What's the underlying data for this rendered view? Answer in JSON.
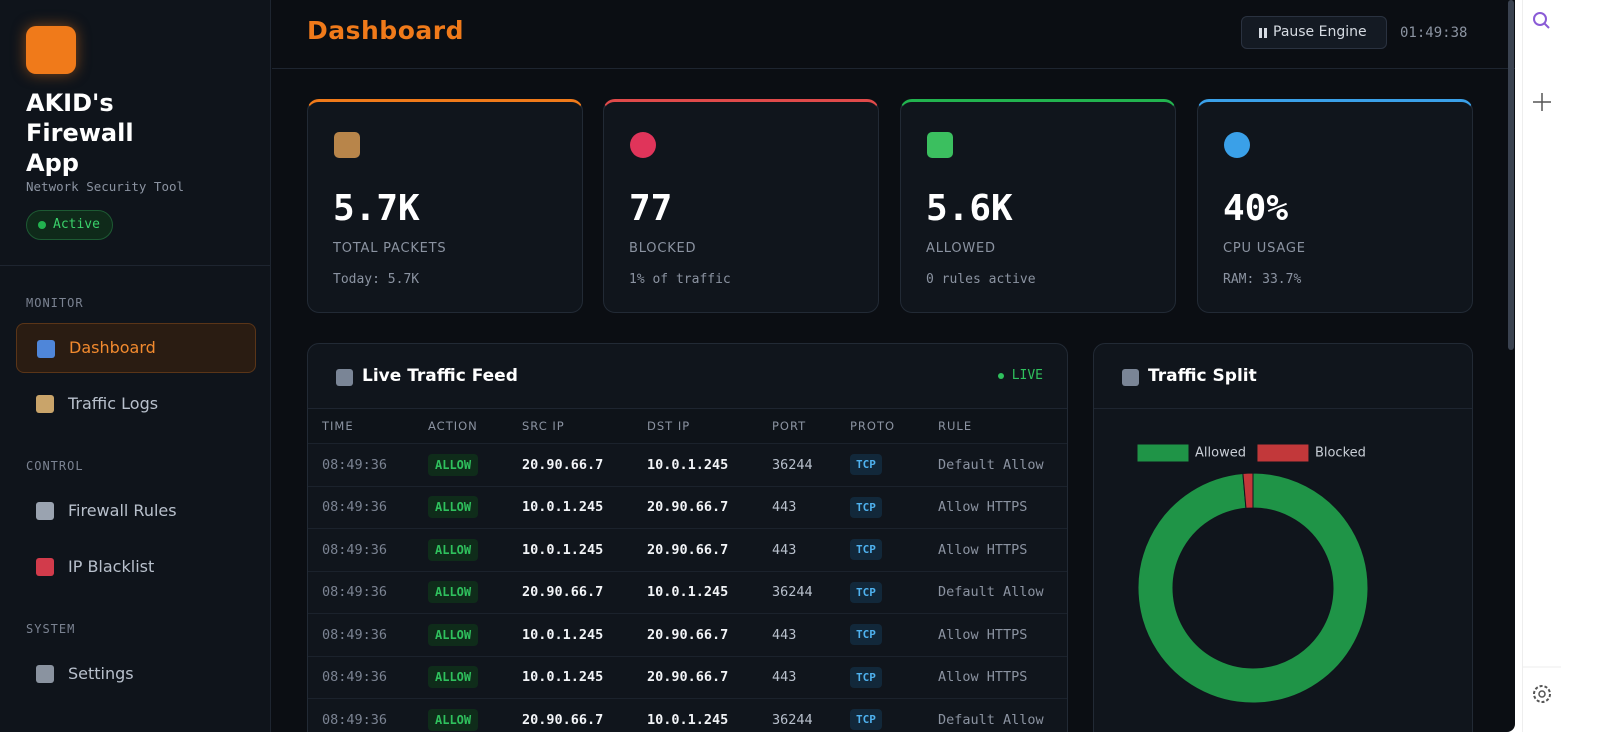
{
  "sidebar": {
    "app_name": "AKID's Firewall App",
    "tagline": "Network Security Tool",
    "status": "Active",
    "sections": [
      {
        "heading": "MONITOR",
        "items": [
          "Dashboard",
          "Traffic Logs"
        ]
      },
      {
        "heading": "CONTROL",
        "items": [
          "Firewall Rules",
          "IP Blacklist"
        ]
      },
      {
        "heading": "SYSTEM",
        "items": [
          "Settings"
        ]
      }
    ]
  },
  "header": {
    "title": "Dashboard",
    "button": "Pause Engine",
    "clock": "01:49:38"
  },
  "stats": [
    {
      "value": "5.7K",
      "label": "TOTAL PACKETS",
      "detail": "Today: 5.7K"
    },
    {
      "value": "77",
      "label": "BLOCKED",
      "detail": "1% of traffic"
    },
    {
      "value": "5.6K",
      "label": "ALLOWED",
      "detail": "0 rules active"
    },
    {
      "value": "40%",
      "label": "CPU USAGE",
      "detail": "RAM: 33.7%"
    }
  ],
  "feed": {
    "title": "Live Traffic Feed",
    "badge": "LIVE",
    "columns": [
      "TIME",
      "ACTION",
      "SRC IP",
      "DST IP",
      "PORT",
      "PROTO",
      "RULE"
    ],
    "rows": [
      [
        "08:49:36",
        "ALLOW",
        "20.90.66.7",
        "10.0.1.245",
        "36244",
        "TCP",
        "Default Allow"
      ],
      [
        "08:49:36",
        "ALLOW",
        "10.0.1.245",
        "20.90.66.7",
        "443",
        "TCP",
        "Allow HTTPS"
      ],
      [
        "08:49:36",
        "ALLOW",
        "10.0.1.245",
        "20.90.66.7",
        "443",
        "TCP",
        "Allow HTTPS"
      ],
      [
        "08:49:36",
        "ALLOW",
        "20.90.66.7",
        "10.0.1.245",
        "36244",
        "TCP",
        "Default Allow"
      ],
      [
        "08:49:36",
        "ALLOW",
        "10.0.1.245",
        "20.90.66.7",
        "443",
        "TCP",
        "Allow HTTPS"
      ],
      [
        "08:49:36",
        "ALLOW",
        "10.0.1.245",
        "20.90.66.7",
        "443",
        "TCP",
        "Allow HTTPS"
      ],
      [
        "08:49:36",
        "ALLOW",
        "20.90.66.7",
        "10.0.1.245",
        "36244",
        "TCP",
        "Default Allow"
      ]
    ]
  },
  "chart_data": {
    "type": "pie",
    "title": "Traffic Split",
    "categories": [
      "Allowed",
      "Blocked"
    ],
    "values": [
      98.6,
      1.4
    ],
    "colors": [
      "#1f9447",
      "#c2383a"
    ]
  }
}
